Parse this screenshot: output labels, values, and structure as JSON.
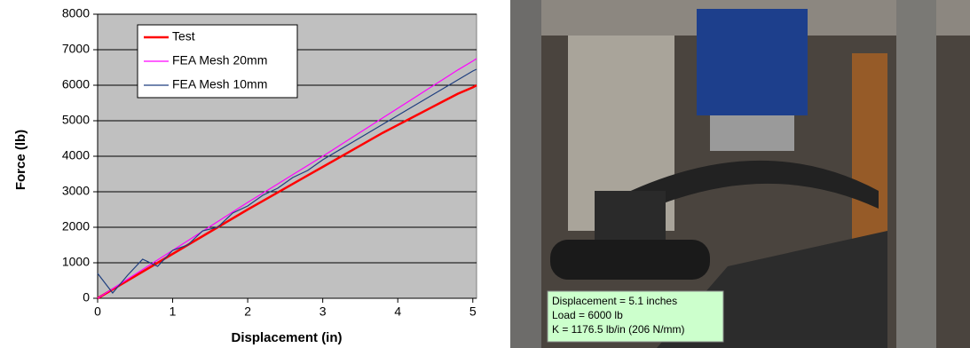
{
  "chart_data": {
    "type": "line",
    "xlabel": "Displacement (in)",
    "ylabel": "Force (lb)",
    "x": [
      0,
      0.2,
      0.4,
      0.6,
      0.8,
      1.0,
      1.2,
      1.4,
      1.6,
      1.8,
      2.0,
      2.2,
      2.4,
      2.6,
      2.8,
      3.0,
      3.2,
      3.4,
      3.6,
      3.8,
      4.0,
      4.2,
      4.4,
      4.6,
      4.8,
      5.0,
      5.05
    ],
    "series": [
      {
        "name": "Test",
        "color": "#ff0000",
        "values": [
          0,
          250,
          500,
          750,
          1000,
          1250,
          1500,
          1750,
          2000,
          2250,
          2500,
          2740,
          2980,
          3220,
          3460,
          3700,
          3940,
          4180,
          4420,
          4660,
          4880,
          5100,
          5320,
          5540,
          5760,
          5940,
          6000
        ]
      },
      {
        "name": "FEA Mesh 20mm",
        "color": "#ff00ff",
        "values": [
          0,
          270,
          540,
          810,
          1080,
          1350,
          1620,
          1890,
          2160,
          2430,
          2700,
          2960,
          3220,
          3480,
          3740,
          4000,
          4270,
          4540,
          4810,
          5080,
          5350,
          5620,
          5890,
          6160,
          6430,
          6680,
          6750
        ]
      },
      {
        "name": "FEA Mesh 10mm",
        "color": "#1f3f7f",
        "values": [
          700,
          150,
          650,
          1100,
          900,
          1350,
          1500,
          1900,
          2000,
          2400,
          2600,
          2900,
          3100,
          3400,
          3600,
          3900,
          4150,
          4400,
          4650,
          4900,
          5150,
          5400,
          5650,
          5900,
          6150,
          6400,
          6450
        ]
      }
    ],
    "xlim": [
      0,
      5.05
    ],
    "xticks": [
      0,
      1,
      2,
      3,
      4,
      5
    ],
    "ylim": [
      0,
      8000
    ],
    "yticks": [
      0,
      1000,
      2000,
      3000,
      4000,
      5000,
      6000,
      7000,
      8000
    ],
    "grid": true,
    "legend": "upper-left"
  },
  "photo": {
    "annotation": [
      "Displacement = 5.1 inches",
      "Load = 6000 lb",
      "K = 1176.5 lb/in (206 N/mm)"
    ]
  }
}
